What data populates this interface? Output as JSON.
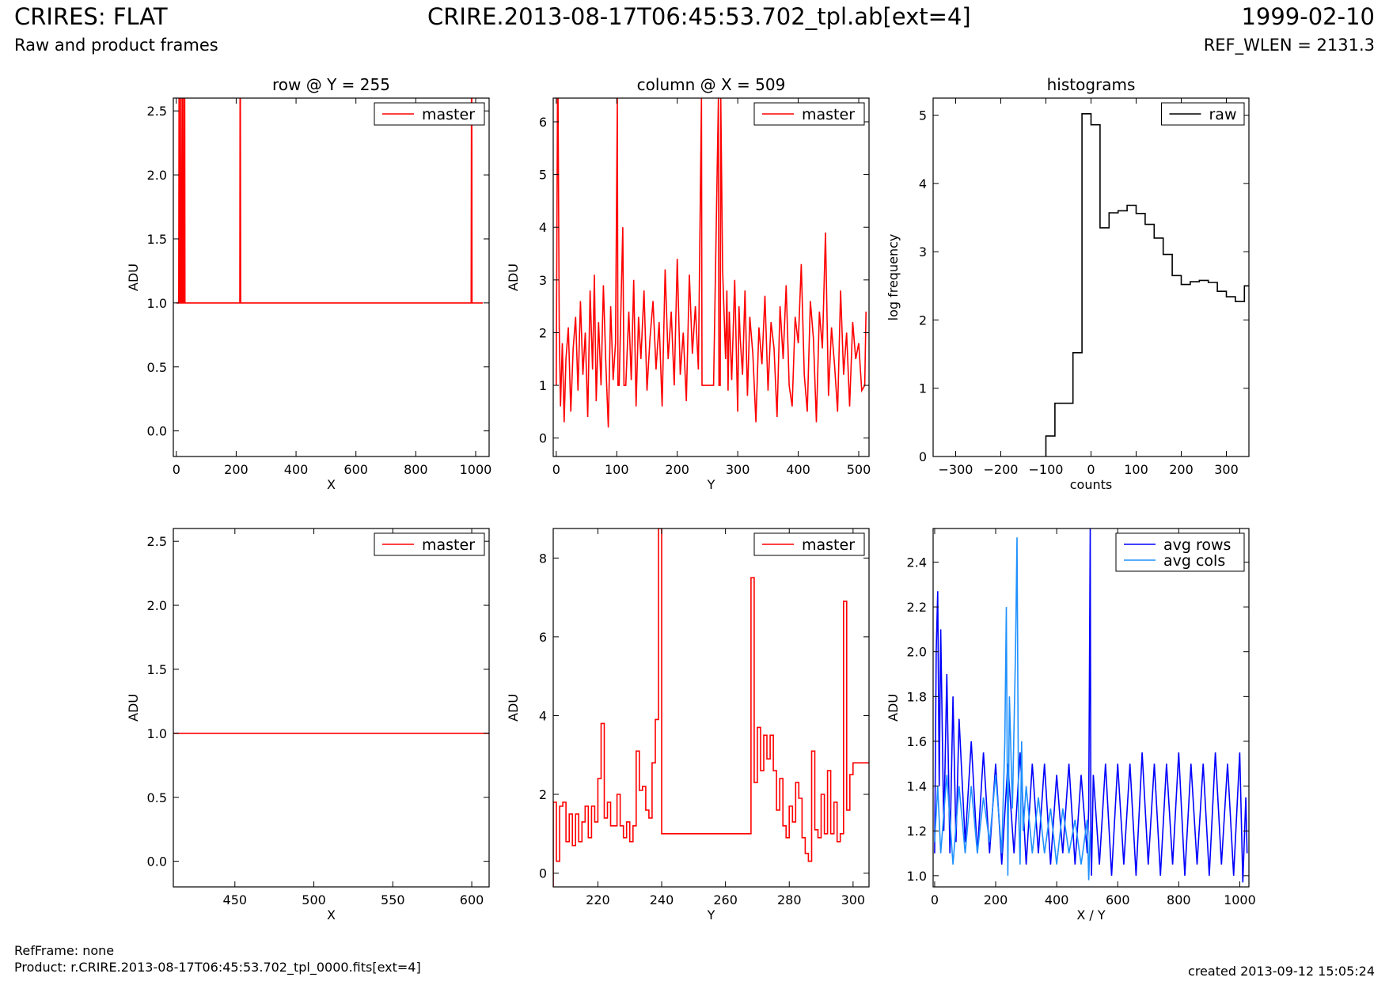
{
  "header": {
    "left_title": "CRIRES: FLAT",
    "left_subtitle": "Raw and product frames",
    "center_title": "CRIRE.2013-08-17T06:45:53.702_tpl.ab[ext=4]",
    "right_title": "1999-02-10",
    "right_subtitle": "REF_WLEN = 2131.3"
  },
  "footer": {
    "refframe": "RefFrame: none",
    "product": "Product: r.CRIRE.2013-08-17T06:45:53.702_tpl_0000.fits[ext=4]",
    "created": "created 2013-09-12 15:05:24"
  },
  "colors": {
    "master": "#ff0000",
    "raw": "#000000",
    "avg_rows": "#0000ff",
    "avg_cols": "#1e90ff"
  },
  "chart_data": [
    {
      "id": "row-full",
      "type": "line",
      "title": "row @ Y = 255",
      "xlabel": "X",
      "ylabel": "ADU",
      "xlim": [
        -10,
        1045
      ],
      "ylim": [
        -0.2,
        2.6
      ],
      "xticks": [
        0,
        200,
        400,
        600,
        800,
        1000
      ],
      "yticks": [
        0.0,
        0.5,
        1.0,
        1.5,
        2.0,
        2.5
      ],
      "ytick_decimals": 1,
      "legend": "top-right",
      "series": [
        {
          "name": "master",
          "color": "#ff0000",
          "x": [
            0,
            8,
            9,
            10,
            11,
            14,
            15,
            16,
            17,
            20,
            21,
            22,
            23,
            26,
            27,
            28,
            29,
            212,
            213,
            214,
            215,
            985,
            986,
            987,
            988,
            1024
          ],
          "y": [
            1.0,
            1.0,
            2.6,
            2.6,
            1.0,
            1.0,
            2.6,
            2.6,
            1.0,
            1.0,
            2.6,
            2.6,
            1.0,
            1.0,
            2.6,
            2.6,
            1.0,
            1.0,
            2.6,
            2.6,
            1.0,
            1.0,
            2.6,
            2.6,
            1.0,
            1.0
          ]
        }
      ]
    },
    {
      "id": "column-full",
      "type": "line",
      "title": "column @ X = 509",
      "xlabel": "Y",
      "ylabel": "ADU",
      "xlim": [
        -5,
        517
      ],
      "ylim": [
        -0.35,
        6.45
      ],
      "xticks": [
        0,
        100,
        200,
        300,
        400,
        500
      ],
      "yticks": [
        0,
        1,
        2,
        3,
        4,
        5,
        6
      ],
      "ytick_decimals": 0,
      "legend": "top-right",
      "series": [
        {
          "name": "master",
          "color": "#ff0000",
          "x": [
            0,
            2,
            3,
            5,
            7,
            10,
            13,
            16,
            20,
            24,
            28,
            32,
            36,
            40,
            44,
            48,
            52,
            56,
            60,
            63,
            66,
            70,
            74,
            78,
            82,
            86,
            90,
            94,
            98,
            101,
            102,
            104,
            110,
            112,
            115,
            120,
            124,
            128,
            132,
            136,
            140,
            145,
            150,
            155,
            160,
            165,
            170,
            175,
            180,
            185,
            190,
            195,
            200,
            205,
            210,
            215,
            220,
            225,
            230,
            235,
            240,
            241,
            250,
            260,
            268,
            269,
            271,
            272,
            275,
            280,
            282,
            284,
            286,
            290,
            295,
            300,
            302,
            304,
            308,
            312,
            316,
            320,
            325,
            330,
            335,
            340,
            345,
            350,
            355,
            360,
            365,
            370,
            375,
            380,
            385,
            390,
            395,
            400,
            405,
            410,
            415,
            420,
            425,
            430,
            435,
            440,
            445,
            450,
            455,
            460,
            465,
            470,
            475,
            480,
            485,
            490,
            495,
            500,
            505,
            510,
            512
          ],
          "y": [
            1.0,
            6.45,
            6.45,
            2.1,
            0.6,
            1.8,
            0.3,
            1.5,
            2.1,
            0.5,
            1.7,
            2.3,
            0.9,
            2.6,
            1.2,
            2.0,
            0.4,
            2.8,
            1.3,
            3.1,
            0.7,
            2.2,
            1.0,
            2.9,
            1.4,
            0.2,
            2.5,
            1.1,
            1.8,
            6.45,
            1.0,
            1.0,
            4.0,
            1.0,
            1.0,
            2.4,
            1.1,
            3.0,
            0.6,
            2.3,
            1.5,
            2.8,
            0.9,
            1.9,
            2.6,
            1.3,
            2.2,
            0.6,
            3.2,
            1.5,
            2.4,
            1.0,
            3.4,
            1.2,
            2.0,
            0.7,
            3.1,
            1.6,
            2.5,
            1.3,
            6.45,
            1.0,
            1.0,
            1.0,
            6.45,
            1.0,
            1.0,
            6.45,
            3.2,
            1.5,
            2.8,
            0.9,
            2.4,
            1.1,
            3.0,
            0.5,
            2.5,
            1.9,
            1.2,
            2.8,
            0.8,
            2.3,
            1.6,
            0.3,
            2.1,
            1.4,
            2.7,
            0.9,
            2.2,
            1.7,
            0.4,
            2.5,
            1.5,
            2.9,
            1.0,
            0.6,
            2.3,
            1.8,
            3.3,
            1.2,
            0.5,
            2.6,
            1.9,
            0.3,
            2.4,
            1.7,
            3.9,
            0.8,
            2.1,
            1.4,
            0.5,
            2.8,
            1.2,
            2.0,
            0.6,
            2.2,
            1.5,
            1.8,
            0.9,
            1.0,
            2.4
          ]
        }
      ]
    },
    {
      "id": "histogram",
      "type": "line",
      "title": "histograms",
      "xlabel": "counts",
      "ylabel": "log frequency",
      "xlim": [
        -350,
        350
      ],
      "ylim": [
        0,
        5.25
      ],
      "xticks": [
        -300,
        -200,
        -100,
        0,
        100,
        200,
        300
      ],
      "yticks": [
        0,
        1,
        2,
        3,
        4,
        5
      ],
      "ytick_decimals": 0,
      "legend": "top-right",
      "series": [
        {
          "name": "raw",
          "color": "#000000",
          "step": true,
          "x": [
            -100,
            -80,
            -60,
            -40,
            -20,
            0,
            20,
            40,
            60,
            80,
            100,
            120,
            140,
            160,
            180,
            200,
            220,
            240,
            260,
            280,
            300,
            320,
            340
          ],
          "y": [
            0.3,
            0.78,
            0.78,
            1.52,
            5.02,
            4.86,
            3.35,
            3.57,
            3.6,
            3.68,
            3.56,
            3.4,
            3.2,
            2.96,
            2.65,
            2.52,
            2.56,
            2.58,
            2.55,
            2.42,
            2.34,
            2.27,
            2.5
          ]
        }
      ]
    },
    {
      "id": "row-zoom",
      "type": "line",
      "title": "",
      "xlabel": "X",
      "ylabel": "ADU",
      "xlim": [
        411,
        611
      ],
      "ylim": [
        -0.2,
        2.6
      ],
      "xticks": [
        450,
        500,
        550,
        600
      ],
      "yticks": [
        0.0,
        0.5,
        1.0,
        1.5,
        2.0,
        2.5
      ],
      "ytick_decimals": 1,
      "legend": "top-right",
      "series": [
        {
          "name": "master",
          "color": "#ff0000",
          "x": [
            411,
            611
          ],
          "y": [
            1.0,
            1.0
          ]
        }
      ]
    },
    {
      "id": "column-zoom",
      "type": "line",
      "title": "",
      "xlabel": "Y",
      "ylabel": "ADU",
      "xlim": [
        206,
        305
      ],
      "ylim": [
        -0.35,
        8.75
      ],
      "xticks": [
        220,
        240,
        260,
        280,
        300
      ],
      "yticks": [
        0,
        2,
        4,
        6,
        8
      ],
      "ytick_decimals": 0,
      "legend": "top-right",
      "series": [
        {
          "name": "master",
          "color": "#ff0000",
          "step": true,
          "x": [
            206,
            207,
            208,
            209,
            210,
            211,
            212,
            213,
            214,
            215,
            216,
            217,
            218,
            219,
            220,
            221,
            222,
            223,
            224,
            225,
            226,
            227,
            228,
            229,
            230,
            231,
            232,
            233,
            234,
            235,
            236,
            237,
            238,
            239,
            240,
            241,
            250,
            260,
            268,
            269,
            270,
            271,
            272,
            273,
            274,
            275,
            276,
            277,
            278,
            279,
            280,
            281,
            282,
            283,
            284,
            285,
            286,
            287,
            288,
            289,
            290,
            291,
            292,
            293,
            294,
            295,
            296,
            297,
            298,
            299,
            300,
            301,
            302,
            303,
            304
          ],
          "y": [
            1.8,
            0.3,
            1.7,
            1.8,
            0.8,
            1.5,
            0.7,
            1.5,
            0.8,
            1.3,
            1.7,
            0.9,
            1.7,
            1.3,
            2.4,
            3.8,
            1.4,
            1.8,
            1.2,
            1.2,
            2.0,
            1.2,
            0.9,
            1.3,
            0.8,
            1.2,
            3.1,
            2.1,
            2.2,
            1.6,
            1.4,
            2.8,
            3.9,
            8.75,
            1.0,
            1.0,
            1.0,
            1.0,
            7.5,
            2.3,
            3.7,
            2.6,
            3.5,
            2.9,
            3.5,
            2.6,
            1.6,
            2.4,
            1.2,
            0.9,
            1.7,
            1.3,
            2.3,
            1.9,
            0.9,
            0.5,
            0.3,
            3.1,
            1.1,
            0.9,
            2.0,
            1.0,
            2.6,
            1.0,
            1.8,
            0.8,
            1.0,
            6.9,
            1.6,
            2.5,
            2.8,
            2.8,
            2.8,
            2.8,
            2.8
          ]
        }
      ]
    },
    {
      "id": "averages",
      "type": "line",
      "title": "",
      "xlabel": "X / Y",
      "ylabel": "ADU",
      "xlim": [
        -5,
        1030
      ],
      "ylim": [
        0.95,
        2.55
      ],
      "xticks": [
        0,
        200,
        400,
        600,
        800,
        1000
      ],
      "yticks": [
        1.0,
        1.2,
        1.4,
        1.6,
        1.8,
        2.0,
        2.2,
        2.4
      ],
      "ytick_decimals": 1,
      "legend": "top-right",
      "series": [
        {
          "name": "avg rows",
          "color": "#0000ff",
          "x": [
            0,
            5,
            10,
            15,
            20,
            30,
            40,
            50,
            60,
            70,
            80,
            100,
            120,
            140,
            160,
            180,
            200,
            220,
            240,
            260,
            280,
            300,
            320,
            340,
            360,
            380,
            400,
            420,
            440,
            460,
            480,
            500,
            505,
            510,
            512,
            514,
            520,
            540,
            560,
            580,
            600,
            620,
            640,
            660,
            680,
            700,
            720,
            740,
            760,
            780,
            800,
            820,
            840,
            860,
            880,
            900,
            920,
            940,
            960,
            980,
            1000,
            1010,
            1020,
            1024
          ],
          "y": [
            1.1,
            2.0,
            2.27,
            1.4,
            2.1,
            1.2,
            1.9,
            1.1,
            1.8,
            1.15,
            1.7,
            1.15,
            1.6,
            1.1,
            1.55,
            1.1,
            1.5,
            1.05,
            1.5,
            1.1,
            1.55,
            1.05,
            1.5,
            1.1,
            1.5,
            1.05,
            1.45,
            1.1,
            1.5,
            1.05,
            1.45,
            1.1,
            1.3,
            2.55,
            1.2,
            1.0,
            1.45,
            1.05,
            1.5,
            1.0,
            1.5,
            1.05,
            1.5,
            1.0,
            1.55,
            1.05,
            1.5,
            1.0,
            1.5,
            1.05,
            1.55,
            1.0,
            1.5,
            1.05,
            1.5,
            1.0,
            1.55,
            1.05,
            1.5,
            1.0,
            1.55,
            0.97,
            1.35,
            1.1
          ]
        },
        {
          "name": "avg cols",
          "color": "#1e90ff",
          "x": [
            0,
            10,
            20,
            40,
            60,
            80,
            100,
            120,
            140,
            160,
            180,
            200,
            220,
            230,
            235,
            240,
            245,
            255,
            265,
            270,
            275,
            280,
            285,
            290,
            300,
            320,
            340,
            360,
            380,
            400,
            420,
            440,
            460,
            480,
            500,
            505,
            510
          ],
          "y": [
            1.15,
            1.4,
            1.1,
            1.45,
            1.05,
            1.4,
            1.1,
            1.4,
            1.1,
            1.35,
            1.15,
            1.45,
            1.1,
            1.6,
            2.2,
            1.0,
            1.8,
            1.3,
            2.0,
            2.51,
            1.3,
            1.05,
            1.6,
            1.2,
            1.4,
            1.1,
            1.35,
            1.1,
            1.3,
            1.05,
            1.3,
            1.1,
            1.25,
            1.05,
            1.25,
            0.98,
            1.2
          ]
        }
      ]
    }
  ]
}
